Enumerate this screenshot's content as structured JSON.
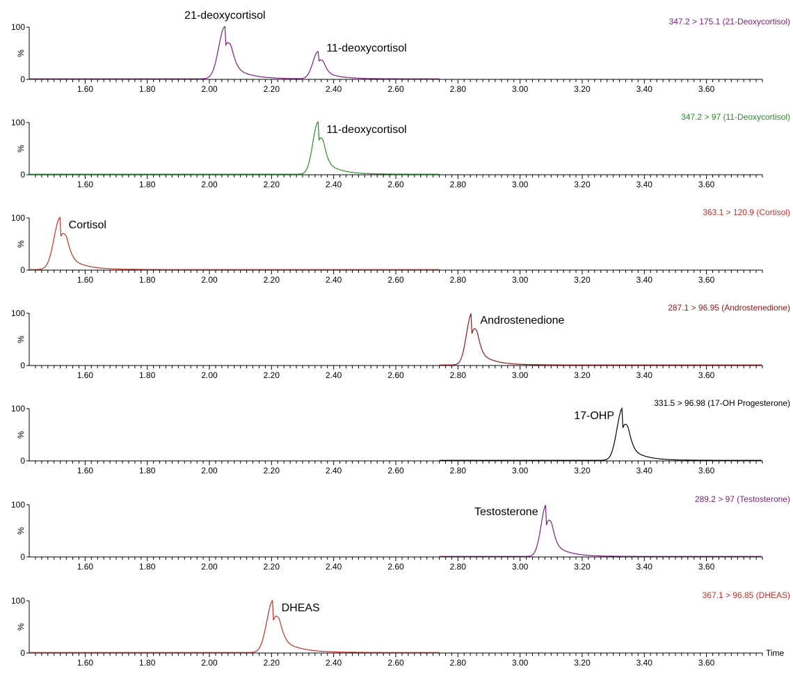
{
  "time_label": "Time",
  "colors": {
    "axis": "#000000",
    "purple": "#7a1f7a",
    "green": "#2f8a2f",
    "red": "#c0302a",
    "dark_red": "#8b1a1a",
    "black": "#000000"
  },
  "chart_data": [
    {
      "type": "line",
      "trace_title": "347.2 > 175.1 (21-Deoxycortisol)",
      "trace_color": "#7a1f7a",
      "xlim": [
        1.42,
        3.78
      ],
      "ylim": [
        0,
        100
      ],
      "y_ticks": [
        "0",
        "100"
      ],
      "y_unit": "%",
      "x_ticks": [
        "1.60",
        "1.80",
        "2.00",
        "2.20",
        "2.40",
        "2.60",
        "2.80",
        "3.00",
        "3.20",
        "3.40",
        "3.60"
      ],
      "trace_end": 2.74,
      "series": [
        {
          "rt": 2.05,
          "height": 100,
          "sigma": 0.02,
          "tail": 0.05
        },
        {
          "rt": 2.35,
          "height": 52,
          "sigma": 0.017,
          "tail": 0.045
        }
      ],
      "peak_labels": [
        {
          "text": "21-deoxycortisol",
          "x": 2.05
        },
        {
          "text": "11-deoxycortisol",
          "x": 2.35
        }
      ]
    },
    {
      "type": "line",
      "trace_title": "347.2 > 97 (11-Deoxycortisol)",
      "trace_color": "#2f8a2f",
      "xlim": [
        1.42,
        3.78
      ],
      "ylim": [
        0,
        100
      ],
      "y_ticks": [
        "0",
        "100"
      ],
      "y_unit": "%",
      "x_ticks": [
        "1.60",
        "1.80",
        "2.00",
        "2.20",
        "2.40",
        "2.60",
        "2.80",
        "3.00",
        "3.20",
        "3.40",
        "3.60"
      ],
      "trace_end": 2.74,
      "series": [
        {
          "rt": 2.35,
          "height": 100,
          "sigma": 0.017,
          "tail": 0.045
        }
      ],
      "peak_labels": [
        {
          "text": "11-deoxycortisol",
          "x": 2.35
        }
      ]
    },
    {
      "type": "line",
      "trace_title": "363.1 > 120.9 (Cortisol)",
      "trace_color": "#c0302a",
      "xlim": [
        1.42,
        3.78
      ],
      "ylim": [
        0,
        100
      ],
      "y_ticks": [
        "0",
        "100"
      ],
      "y_unit": "%",
      "x_ticks": [
        "1.60",
        "1.80",
        "2.00",
        "2.20",
        "2.40",
        "2.60",
        "2.80",
        "3.00",
        "3.20",
        "3.40",
        "3.60"
      ],
      "trace_end": 2.74,
      "series": [
        {
          "rt": 1.52,
          "height": 100,
          "sigma": 0.02,
          "tail": 0.05
        }
      ],
      "peak_labels": [
        {
          "text": "Cortisol",
          "x": 1.52
        }
      ]
    },
    {
      "type": "line",
      "trace_title": "287.1 > 96.95 (Androstenedione)",
      "trace_color": "#8b1a1a",
      "xlim": [
        1.42,
        3.78
      ],
      "ylim": [
        0,
        100
      ],
      "y_ticks": [
        "0",
        "100"
      ],
      "y_unit": "%",
      "x_ticks": [
        "1.60",
        "1.80",
        "2.00",
        "2.20",
        "2.40",
        "2.60",
        "2.80",
        "3.00",
        "3.20",
        "3.40",
        "3.60"
      ],
      "trace_start": 2.74,
      "series": [
        {
          "rt": 2.845,
          "height": 100,
          "sigma": 0.017,
          "tail": 0.045
        }
      ],
      "peak_labels": [
        {
          "text": "Androstenedione",
          "x": 2.845
        }
      ]
    },
    {
      "type": "line",
      "trace_title": "331.5 > 96.98 (17-OH Progesterone)",
      "trace_color": "#000000",
      "xlim": [
        1.42,
        3.78
      ],
      "ylim": [
        0,
        100
      ],
      "y_ticks": [
        "0",
        "100"
      ],
      "y_unit": "%",
      "x_ticks": [
        "1.60",
        "1.80",
        "2.00",
        "2.20",
        "2.40",
        "2.60",
        "2.80",
        "3.00",
        "3.20",
        "3.40",
        "3.60"
      ],
      "trace_start": 2.74,
      "series": [
        {
          "rt": 3.33,
          "height": 100,
          "sigma": 0.018,
          "tail": 0.045
        }
      ],
      "peak_labels": [
        {
          "text": "17-OHP",
          "x": 3.33
        }
      ]
    },
    {
      "type": "line",
      "trace_title": "289.2 > 97 (Testosterone)",
      "trace_color": "#7a1f7a",
      "xlim": [
        1.42,
        3.78
      ],
      "ylim": [
        0,
        100
      ],
      "y_ticks": [
        "0",
        "100"
      ],
      "y_unit": "%",
      "x_ticks": [
        "1.60",
        "1.80",
        "2.00",
        "2.20",
        "2.40",
        "2.60",
        "2.80",
        "3.00",
        "3.20",
        "3.40",
        "3.60"
      ],
      "trace_start": 2.74,
      "series": [
        {
          "rt": 3.085,
          "height": 100,
          "sigma": 0.017,
          "tail": 0.045
        }
      ],
      "peak_labels": [
        {
          "text": "Testosterone",
          "x": 3.085
        }
      ]
    },
    {
      "type": "line",
      "trace_title": "367.1 > 96.85 (DHEAS)",
      "trace_color": "#c0302a",
      "xlim": [
        1.42,
        3.78
      ],
      "ylim": [
        0,
        100
      ],
      "y_ticks": [
        "0",
        "100"
      ],
      "y_unit": "%",
      "x_ticks": [
        "1.60",
        "1.80",
        "2.00",
        "2.20",
        "2.40",
        "2.60",
        "2.80",
        "3.00",
        "3.20",
        "3.40",
        "3.60"
      ],
      "trace_end": 2.74,
      "series": [
        {
          "rt": 2.205,
          "height": 100,
          "sigma": 0.02,
          "tail": 0.055
        }
      ],
      "peak_labels": [
        {
          "text": "DHEAS",
          "x": 2.205
        }
      ]
    }
  ]
}
